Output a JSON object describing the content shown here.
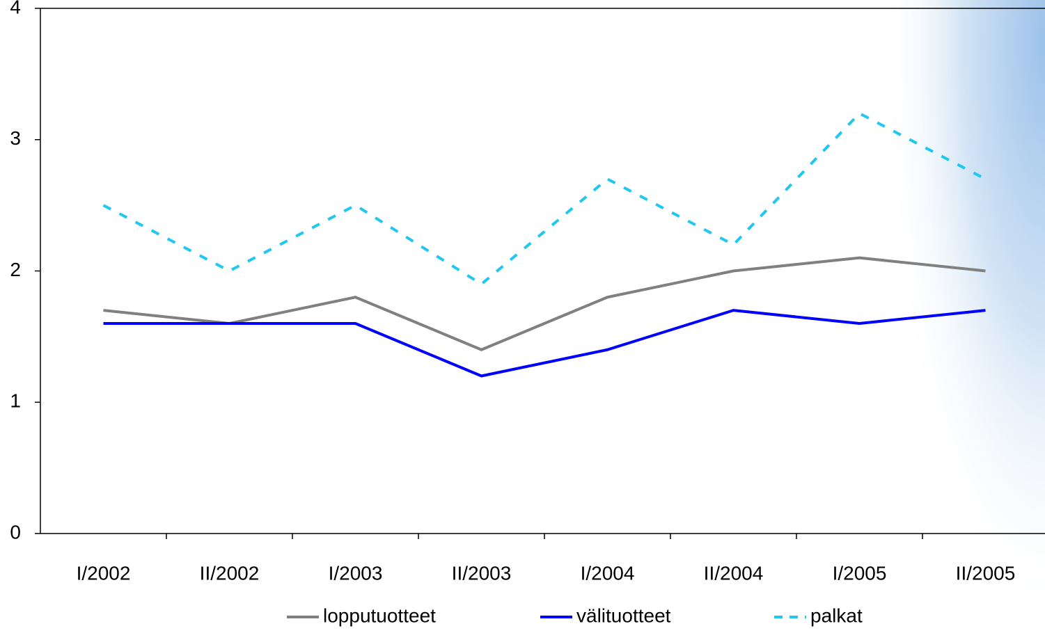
{
  "chart_data": {
    "type": "line",
    "categories": [
      "I/2002",
      "II/2002",
      "I/2003",
      "II/2003",
      "I/2004",
      "II/2004",
      "I/2005",
      "II/2005"
    ],
    "series": [
      {
        "name": "lopputuotteet",
        "color": "#808080",
        "dashed": false,
        "values": [
          1.7,
          1.6,
          1.8,
          1.4,
          1.8,
          2.0,
          2.1,
          2.0
        ]
      },
      {
        "name": "välituotteet",
        "color": "#0000ff",
        "dashed": false,
        "values": [
          1.6,
          1.6,
          1.6,
          1.2,
          1.4,
          1.7,
          1.6,
          1.7
        ]
      },
      {
        "name": "palkat",
        "color": "#1ec8f0",
        "dashed": true,
        "values": [
          2.5,
          2.0,
          2.5,
          1.9,
          2.7,
          2.2,
          3.2,
          2.7
        ]
      }
    ],
    "ylim": [
      0,
      4
    ],
    "yticks": [
      0,
      1,
      2,
      3,
      4
    ],
    "grid": false,
    "legend": "bottom"
  }
}
